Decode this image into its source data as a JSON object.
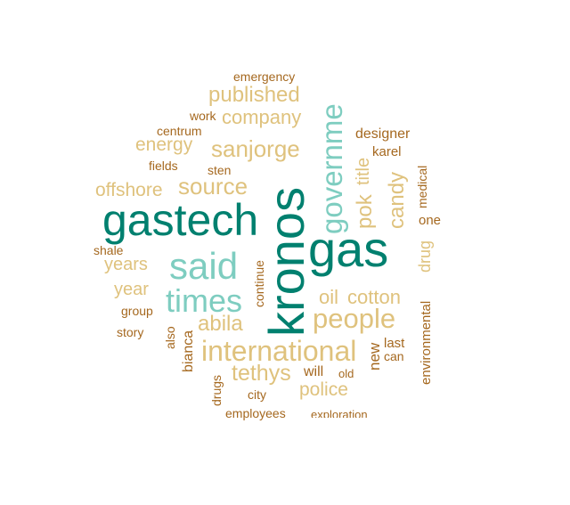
{
  "colors": {
    "dark_teal": "#00806f",
    "light_teal": "#7ecdc0",
    "tan": "#dfc27d",
    "brown": "#a5681f"
  },
  "words": {
    "kronos": "kronos",
    "gas": "gas",
    "gastech": "gastech",
    "said": "said",
    "governme": "governme",
    "times": "times",
    "international": "international",
    "people": "people",
    "sanjorge": "sanjorge",
    "published": "published",
    "company": "company",
    "source": "source",
    "pok": "pok",
    "title": "title",
    "candy": "candy",
    "energy": "energy",
    "offshore": "offshore",
    "years": "years",
    "year": "year",
    "oil": "oil",
    "cotton": "cotton",
    "abila": "abila",
    "tethys": "tethys",
    "police": "police",
    "drug": "drug",
    "emergency": "emergency",
    "work": "work",
    "centrum": "centrum",
    "fields": "fields",
    "sten": "sten",
    "designer": "designer",
    "karel": "karel",
    "medical": "medical",
    "one": "one",
    "shale": "shale",
    "continue": "continue",
    "group": "group",
    "story": "story",
    "also": "also",
    "bianca": "bianca",
    "new": "new",
    "last": "last",
    "can": "can",
    "environmental": "environmental",
    "will": "will",
    "old": "old",
    "drugs": "drugs",
    "city": "city",
    "employees": "employees",
    "exploration": "exploration"
  }
}
